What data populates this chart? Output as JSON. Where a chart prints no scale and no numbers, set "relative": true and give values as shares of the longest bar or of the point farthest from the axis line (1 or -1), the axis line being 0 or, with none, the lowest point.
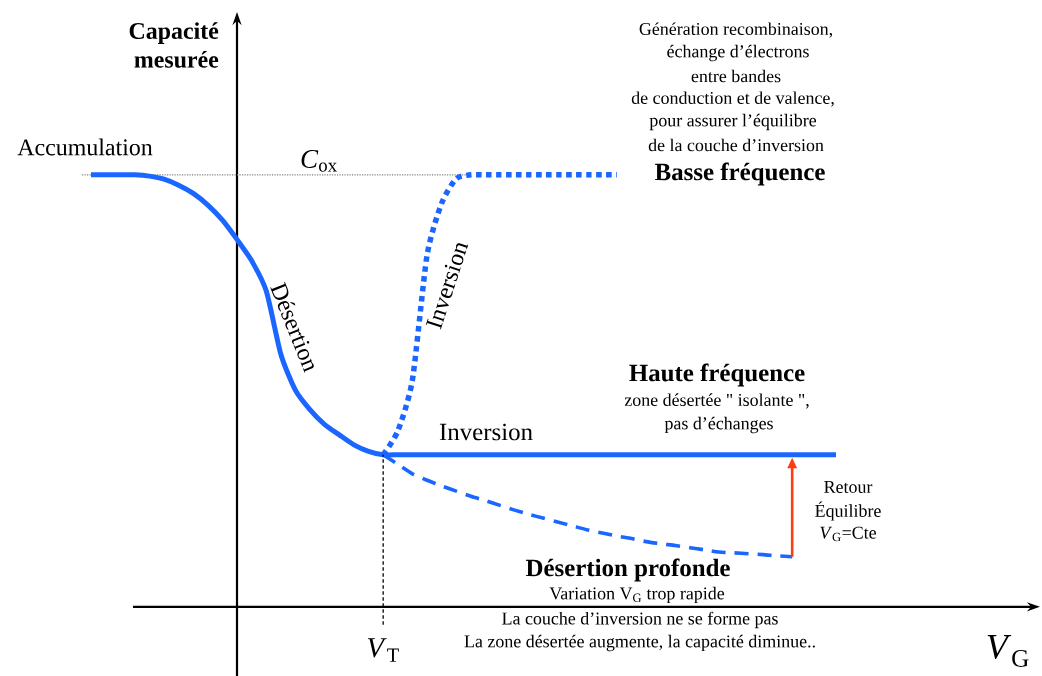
{
  "chart_data": {
    "type": "line",
    "relative": true,
    "xlabel": "*V*$_{G}$",
    "ylabel": "Capacité mesurée",
    "categories": [
      null,
      null,
      null,
      null,
      null,
      null,
      null,
      null,
      null,
      null,
      null,
      null,
      null,
      null,
      null,
      null,
      null,
      null,
      null,
      null,
      null,
      null,
      null,
      null,
      null,
      null,
      null,
      null,
      null,
      null,
      null,
      null,
      null,
      null,
      null,
      null,
      null,
      null,
      null,
      null,
      null,
      null,
      null,
      null,
      null,
      null,
      null,
      null,
      null,
      null,
      null,
      null
    ],
    "series": [
      {
        "color": "#1a66ff",
        "line_style": "solid",
        "values": [
          1,
          1,
          1,
          1,
          0.997,
          0.99,
          0.976,
          0.957,
          0.93,
          0.895,
          0.85,
          0.801,
          0.731,
          0.584,
          0.501,
          0.456,
          0.422,
          0.398,
          0.375,
          0.36,
          0.352,
          0.352,
          0.352,
          0.352,
          0.352,
          0.352,
          0.352,
          0.352,
          0.352,
          0.352,
          0.352,
          0.352,
          0.352,
          0.352,
          0.352,
          0.352,
          0.352,
          0.352,
          0.352,
          0.352,
          0.352,
          0.352,
          0.352,
          0.352,
          0.352,
          0.352,
          0.352,
          0.352,
          0.352,
          0.352,
          0.352,
          0.352
        ]
      },
      {
        "color": "#1a66ff",
        "line_style": "dotted",
        "values": [
          null,
          null,
          null,
          null,
          null,
          null,
          null,
          null,
          null,
          null,
          null,
          null,
          null,
          null,
          null,
          null,
          null,
          null,
          null,
          null,
          0.352,
          0.407,
          0.525,
          0.813,
          0.934,
          0.991,
          1,
          1,
          1,
          1,
          1,
          1,
          1,
          1,
          1,
          1,
          1,
          null,
          null,
          null,
          null,
          null,
          null,
          null,
          null,
          null,
          null,
          null,
          null,
          null,
          null,
          null
        ]
      },
      {
        "color": "#1a66ff",
        "line_style": "dashed",
        "values": [
          null,
          null,
          null,
          null,
          null,
          null,
          null,
          null,
          null,
          null,
          null,
          null,
          null,
          null,
          null,
          null,
          null,
          null,
          null,
          null,
          0.352,
          0.33,
          0.308,
          0.293,
          0.28,
          0.268,
          0.256,
          0.246,
          0.235,
          0.224,
          0.214,
          0.205,
          0.196,
          0.187,
          0.178,
          0.171,
          0.164,
          0.158,
          0.151,
          0.146,
          0.142,
          0.137,
          0.132,
          0.127,
          0.125,
          0.123,
          0.121,
          0.118,
          0.116,
          null,
          null,
          null
        ]
      }
    ],
    "ref_lines": [
      {
        "axis": "y",
        "value": 1,
        "label": "*C*$_{ox}$",
        "color": "#808080",
        "line_style": "dotted"
      }
    ],
    "annotations": [
      "Accumulation",
      "Désertion",
      "Inversion",
      "Inversion",
      "Génération recombinaison,",
      "échange d’électrons",
      "entre bandes",
      "de conduction et de valence,",
      "pour assurer l’équilibre",
      "de la couche d’inversion",
      "Basse fréquence",
      "Haute fréquence",
      "zone désertée \" isolante \",",
      "pas d’échanges",
      "Retour",
      "Équilibre",
      "*V*$_{G}$=Cte",
      "Désertion profonde",
      "Variation V$_{G}$ trop rapide",
      "La couche d’inversion ne se forme pas",
      "La zone désertée augmente, la capacité diminue..",
      "*V*$_{T}$"
    ]
  }
}
